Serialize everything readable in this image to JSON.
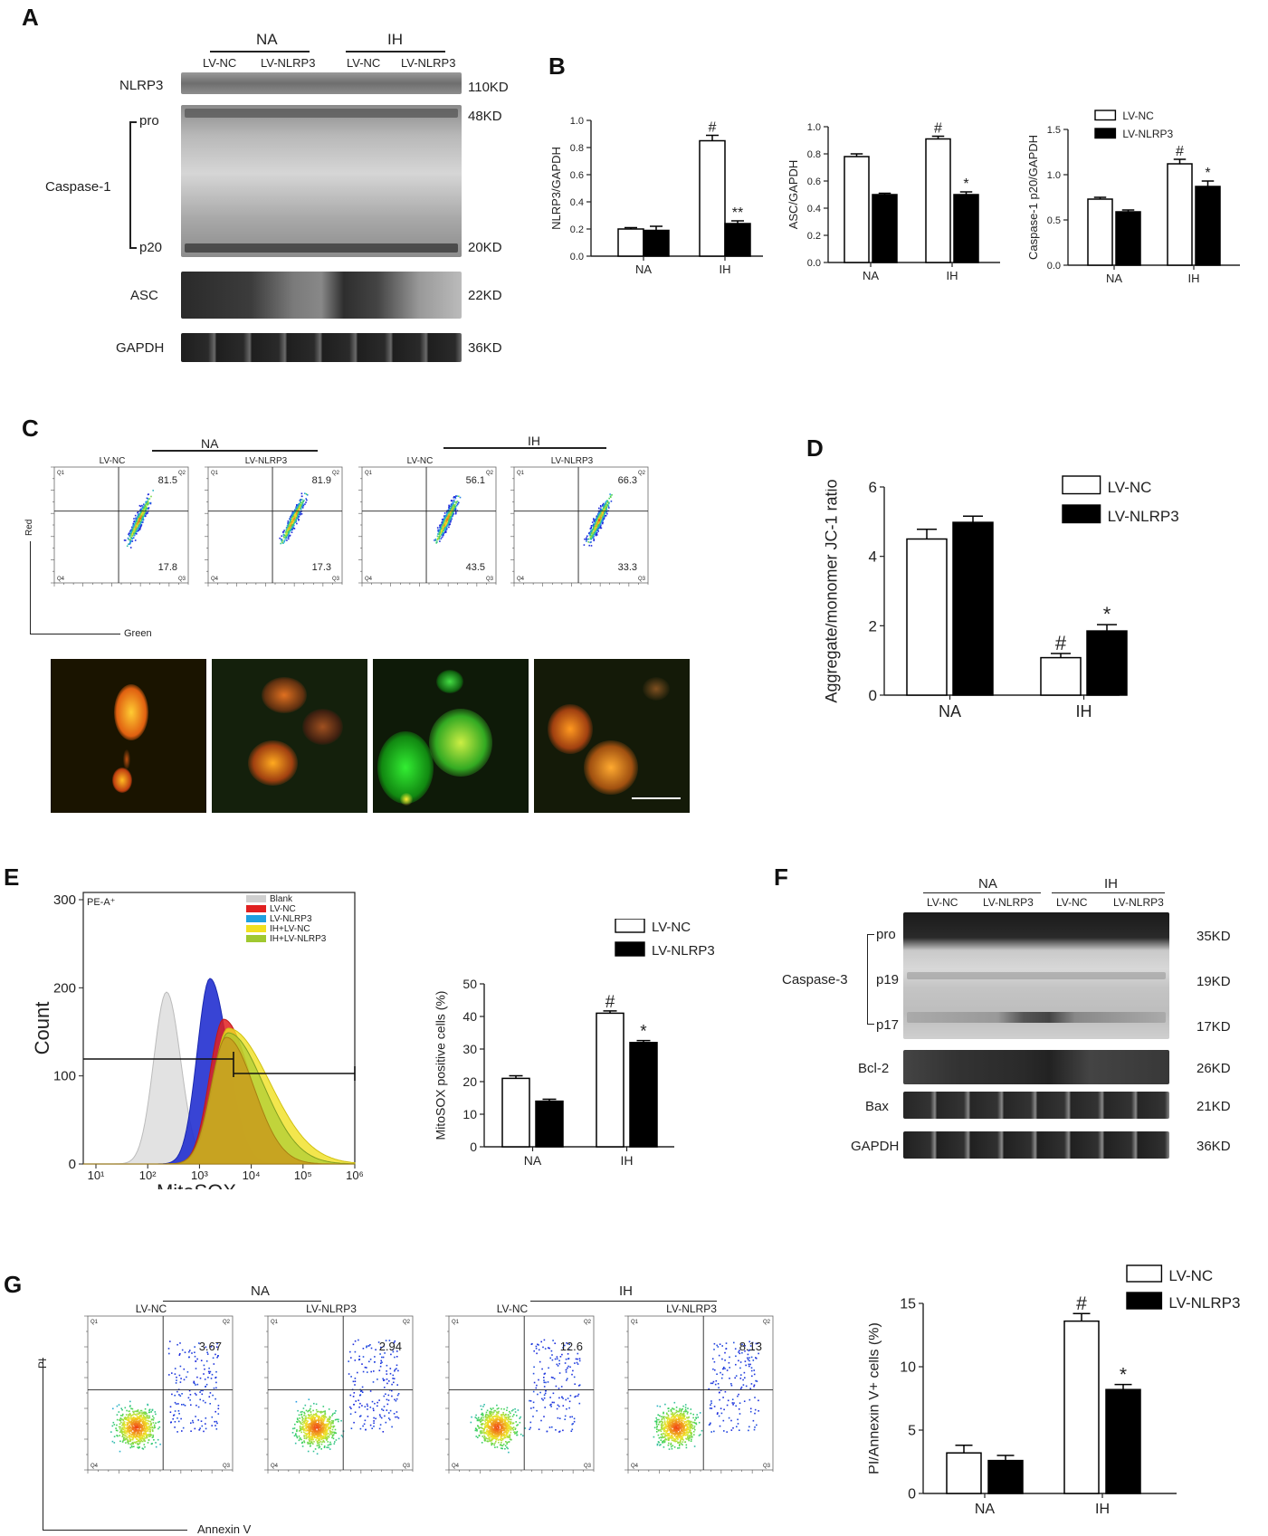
{
  "panels": {
    "A": "A",
    "B": "B",
    "C": "C",
    "D": "D",
    "E": "E",
    "F": "F",
    "G": "G"
  },
  "groups": {
    "na": "NA",
    "ih": "IH",
    "lvnc": "LV-NC",
    "lvnlrp3": "LV-NLRP3"
  },
  "blotA": {
    "rows": {
      "nlrp3": "NLRP3",
      "caspase1": "Caspase-1",
      "pro": "pro",
      "p20": "p20",
      "asc": "ASC",
      "gapdh": "GAPDH"
    },
    "kd": {
      "nlrp3": "110KD",
      "pro": "48KD",
      "p20": "20KD",
      "asc": "22KD",
      "gapdh": "36KD"
    }
  },
  "blotF": {
    "rows": {
      "caspase3": "Caspase-3",
      "pro": "pro",
      "p19": "p19",
      "p17": "p17",
      "bcl2": "Bcl-2",
      "bax": "Bax",
      "gapdh": "GAPDH"
    },
    "kd": {
      "pro": "35KD",
      "p19": "19KD",
      "p17": "17KD",
      "bcl2": "26KD",
      "bax": "21KD",
      "gapdh": "36KD"
    }
  },
  "flowC": {
    "ylabel": "Red",
    "xlabel": "Green",
    "quads": [
      "Q1",
      "Q2",
      "Q3",
      "Q4"
    ],
    "plots": [
      {
        "group": "LV-NC",
        "q2": "81.5",
        "q3": "17.8"
      },
      {
        "group": "LV-NLRP3",
        "q2": "81.9",
        "q3": "17.3"
      },
      {
        "group": "LV-NC",
        "q2": "56.1",
        "q3": "43.5"
      },
      {
        "group": "LV-NLRP3",
        "q2": "66.3",
        "q3": "33.3"
      }
    ]
  },
  "flowG": {
    "ylabel": "PI",
    "xlabel": "Annexin V",
    "quads": [
      "Q1",
      "Q2",
      "Q3",
      "Q4"
    ],
    "plots": [
      {
        "group": "LV-NC",
        "q2": "3.67"
      },
      {
        "group": "LV-NLRP3",
        "q2": "2.94"
      },
      {
        "group": "LV-NC",
        "q2": "12.6"
      },
      {
        "group": "LV-NLRP3",
        "q2": "8.13"
      }
    ]
  },
  "histE": {
    "title": "PE-A⁺",
    "ylabel": "Count",
    "xlabel": "MitoSOX",
    "yticks": [
      "0",
      "100",
      "200",
      "300"
    ],
    "legend": [
      {
        "label": "Blank",
        "color": "#cfcfcf"
      },
      {
        "label": "LV-NC",
        "color": "#e02020"
      },
      {
        "label": "LV-NLRP3",
        "color": "#1ea0e0"
      },
      {
        "label": "IH+LV-NC",
        "color": "#f0e020"
      },
      {
        "label": "IH+LV-NLRP3",
        "color": "#a0c830"
      }
    ]
  },
  "chart_data": [
    {
      "id": "B1",
      "type": "bar",
      "categories": [
        "NA",
        "IH"
      ],
      "ylabel": "NLRP3/GAPDH",
      "ylim": [
        0,
        1.0
      ],
      "yticks": [
        "0.0",
        "0.2",
        "0.4",
        "0.6",
        "0.8",
        "1.0"
      ],
      "series": [
        {
          "name": "LV-NC",
          "values": [
            0.2,
            0.85
          ],
          "err": [
            0.01,
            0.04
          ]
        },
        {
          "name": "LV-NLRP3",
          "values": [
            0.19,
            0.24
          ],
          "err": [
            0.03,
            0.02
          ]
        }
      ],
      "annotations": [
        {
          "cat": 1,
          "series": 0,
          "text": "#"
        },
        {
          "cat": 1,
          "series": 1,
          "text": "**"
        }
      ]
    },
    {
      "id": "B2",
      "type": "bar",
      "categories": [
        "NA",
        "IH"
      ],
      "ylabel": "ASC/GAPDH",
      "ylim": [
        0,
        1.0
      ],
      "yticks": [
        "0.0",
        "0.2",
        "0.4",
        "0.6",
        "0.8",
        "1.0"
      ],
      "series": [
        {
          "name": "LV-NC",
          "values": [
            0.78,
            0.91
          ],
          "err": [
            0.02,
            0.02
          ]
        },
        {
          "name": "LV-NLRP3",
          "values": [
            0.5,
            0.5
          ],
          "err": [
            0.01,
            0.02
          ]
        }
      ],
      "annotations": [
        {
          "cat": 1,
          "series": 0,
          "text": "#"
        },
        {
          "cat": 1,
          "series": 1,
          "text": "*"
        }
      ]
    },
    {
      "id": "B3",
      "type": "bar",
      "categories": [
        "NA",
        "IH"
      ],
      "ylabel": "Caspase-1 p20/GAPDH",
      "ylim": [
        0,
        1.5
      ],
      "yticks": [
        "0.0",
        "0.5",
        "1.0",
        "1.5"
      ],
      "legend": "top-right",
      "series": [
        {
          "name": "LV-NC",
          "values": [
            0.73,
            1.12
          ],
          "err": [
            0.02,
            0.05
          ]
        },
        {
          "name": "LV-NLRP3",
          "values": [
            0.59,
            0.87
          ],
          "err": [
            0.02,
            0.06
          ]
        }
      ],
      "annotations": [
        {
          "cat": 1,
          "series": 0,
          "text": "#"
        },
        {
          "cat": 1,
          "series": 1,
          "text": "*"
        }
      ]
    },
    {
      "id": "D",
      "type": "bar",
      "categories": [
        "NA",
        "IH"
      ],
      "ylabel": "Aggregate/monomer JC-1 ratio",
      "ylim": [
        0,
        6
      ],
      "yticks": [
        "0",
        "2",
        "4",
        "6"
      ],
      "legend": "top-right",
      "series": [
        {
          "name": "LV-NC",
          "values": [
            4.5,
            1.08
          ],
          "err": [
            0.28,
            0.12
          ]
        },
        {
          "name": "LV-NLRP3",
          "values": [
            4.98,
            1.85
          ],
          "err": [
            0.18,
            0.18
          ]
        }
      ],
      "annotations": [
        {
          "cat": 1,
          "series": 0,
          "text": "#"
        },
        {
          "cat": 1,
          "series": 1,
          "text": "*"
        }
      ]
    },
    {
      "id": "E",
      "type": "bar",
      "categories": [
        "NA",
        "IH"
      ],
      "ylabel": "MitoSOX positive cells (%)",
      "ylim": [
        0,
        50
      ],
      "yticks": [
        "0",
        "10",
        "20",
        "30",
        "40",
        "50"
      ],
      "legend": "top-right",
      "series": [
        {
          "name": "LV-NC",
          "values": [
            21,
            41
          ],
          "err": [
            0.8,
            0.7
          ]
        },
        {
          "name": "LV-NLRP3",
          "values": [
            14,
            32
          ],
          "err": [
            0.6,
            0.6
          ]
        }
      ],
      "annotations": [
        {
          "cat": 1,
          "series": 0,
          "text": "#"
        },
        {
          "cat": 1,
          "series": 1,
          "text": "*"
        }
      ]
    },
    {
      "id": "G",
      "type": "bar",
      "categories": [
        "NA",
        "IH"
      ],
      "ylabel": "PI/Annexin V+ cells (%)",
      "ylim": [
        0,
        15
      ],
      "yticks": [
        "0",
        "5",
        "10",
        "15"
      ],
      "legend": "top-right",
      "series": [
        {
          "name": "LV-NC",
          "values": [
            3.2,
            13.6
          ],
          "err": [
            0.6,
            0.6
          ]
        },
        {
          "name": "LV-NLRP3",
          "values": [
            2.6,
            8.2
          ],
          "err": [
            0.4,
            0.4
          ]
        }
      ],
      "annotations": [
        {
          "cat": 1,
          "series": 0,
          "text": "#"
        },
        {
          "cat": 1,
          "series": 1,
          "text": "*"
        }
      ]
    }
  ]
}
